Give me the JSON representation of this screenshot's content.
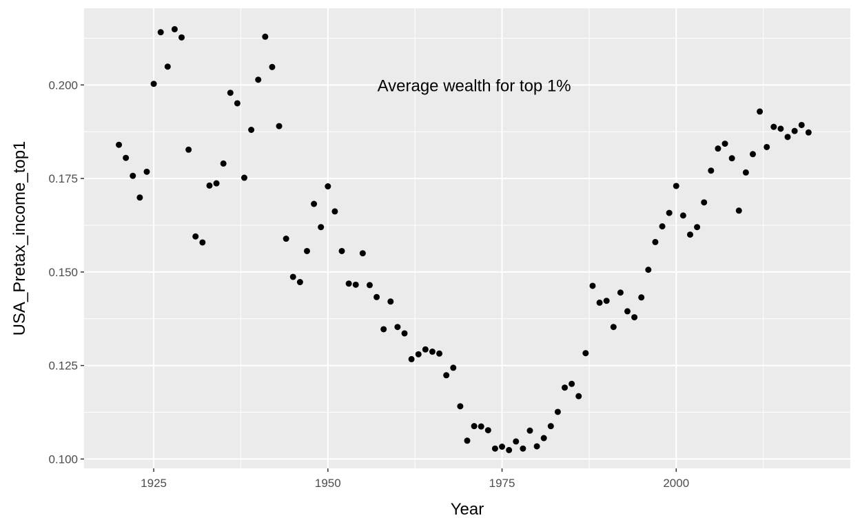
{
  "chart_data": {
    "type": "scatter",
    "title": "",
    "xlabel": "Year",
    "ylabel": "USA_Pretax_income_top1",
    "annotation": {
      "text": "Average wealth for top 1%",
      "x": 1971,
      "y": 0.2
    },
    "xlim": [
      1915,
      2025
    ],
    "ylim": [
      0.0975,
      0.2205
    ],
    "x_ticks": [
      1925,
      1950,
      1975,
      2000
    ],
    "x_tick_labels": [
      "1925",
      "1950",
      "1975",
      "2000"
    ],
    "y_ticks": [
      0.1,
      0.125,
      0.15,
      0.175,
      0.2
    ],
    "y_tick_labels": [
      "0.100",
      "0.125",
      "0.150",
      "0.175",
      "0.200"
    ],
    "grid": true,
    "colors": {
      "panel": "#ebebeb",
      "grid": "#ffffff",
      "point": "#000000"
    },
    "series": [
      {
        "x": [
          1920,
          1921,
          1922,
          1923,
          1924,
          1925,
          1926,
          1927,
          1928,
          1929,
          1930,
          1931,
          1932,
          1933,
          1934,
          1935,
          1936,
          1937,
          1938,
          1939,
          1940,
          1941,
          1942,
          1943,
          1944,
          1945,
          1946,
          1947,
          1948,
          1949,
          1950,
          1951,
          1952,
          1953,
          1954,
          1955,
          1956,
          1957,
          1958,
          1959,
          1960,
          1961,
          1962,
          1963,
          1964,
          1965,
          1966,
          1967,
          1968,
          1969,
          1970,
          1971,
          1972,
          1973,
          1974,
          1975,
          1976,
          1977,
          1978,
          1979,
          1980,
          1981,
          1982,
          1983,
          1984,
          1985,
          1986,
          1987,
          1988,
          1989,
          1990,
          1991,
          1992,
          1993,
          1994,
          1995,
          1996,
          1997,
          1998,
          1999,
          2000,
          2001,
          2002,
          2003,
          2004,
          2005,
          2006,
          2007,
          2008,
          2009,
          2010,
          2011,
          2012,
          2013,
          2014,
          2015,
          2016,
          2017,
          2018,
          2019
        ],
        "y": [
          0.184,
          0.1805,
          0.1757,
          0.1699,
          0.1768,
          0.2003,
          0.2141,
          0.2049,
          0.2149,
          0.2127,
          0.1827,
          0.1595,
          0.1579,
          0.1731,
          0.1737,
          0.179,
          0.1979,
          0.1951,
          0.1752,
          0.188,
          0.2014,
          0.2129,
          0.2048,
          0.189,
          0.1589,
          0.1487,
          0.1473,
          0.1556,
          0.1682,
          0.162,
          0.1729,
          0.1662,
          0.1556,
          0.1469,
          0.1466,
          0.155,
          0.1465,
          0.1433,
          0.1347,
          0.1421,
          0.1353,
          0.1336,
          0.1267,
          0.128,
          0.1293,
          0.1287,
          0.1282,
          0.1224,
          0.1244,
          0.1141,
          0.1049,
          0.1088,
          0.1087,
          0.1077,
          0.1028,
          0.1033,
          0.1024,
          0.1047,
          0.1028,
          0.1076,
          0.1034,
          0.1056,
          0.1088,
          0.1126,
          0.1191,
          0.1201,
          0.1168,
          0.1283,
          0.1463,
          0.1418,
          0.1423,
          0.1353,
          0.1445,
          0.1395,
          0.1379,
          0.1432,
          0.1506,
          0.158,
          0.1622,
          0.1658,
          0.173,
          0.1651,
          0.16,
          0.162,
          0.1686,
          0.1771,
          0.183,
          0.1843,
          0.1804,
          0.1664,
          0.1766,
          0.1815,
          0.1929,
          0.1834,
          0.1888,
          0.1883,
          0.1861,
          0.1877,
          0.1893,
          0.1873
        ]
      }
    ]
  }
}
